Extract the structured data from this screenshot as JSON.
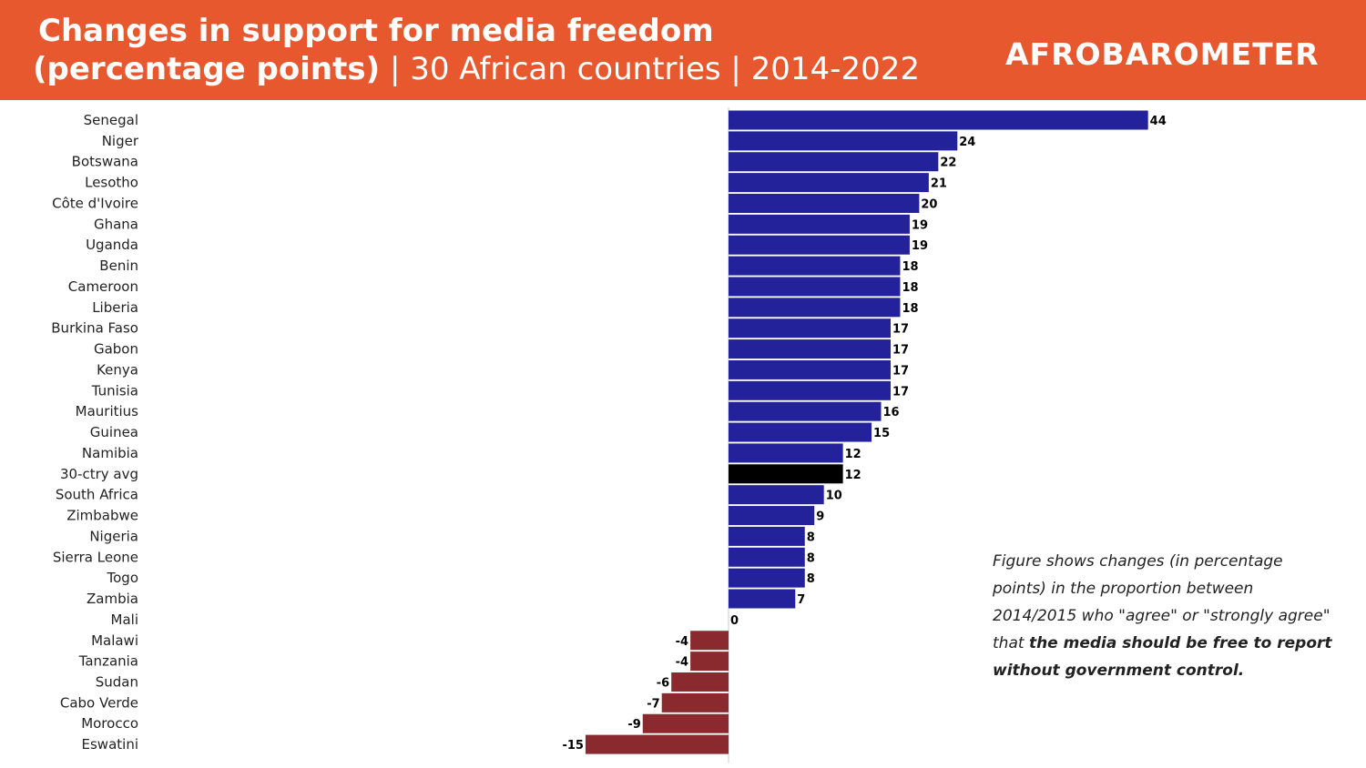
{
  "header": {
    "title_bold": "Changes in support for media freedom",
    "title_bold2": "(percentage points)",
    "title_rest": " | 30 African countries | 2014-2022",
    "logo": "AFROBAROMETER"
  },
  "note": {
    "text_plain": "Figure shows changes (in percentage points) in the proportion between 2014/2015 who \"agree\" or \"strongly agree\" that ",
    "text_bold": "the media should be free to report without government control."
  },
  "colors": {
    "header_bg": "#e8582e",
    "positive": "#24229a",
    "negative": "#8a2a2e",
    "average": "#000000"
  },
  "chart_data": {
    "type": "bar",
    "orientation": "horizontal",
    "categories": [
      "Senegal",
      "Niger",
      "Botswana",
      "Lesotho",
      "Côte d'Ivoire",
      "Ghana",
      "Uganda",
      "Benin",
      "Cameroon",
      "Liberia",
      "Burkina Faso",
      "Gabon",
      "Kenya",
      "Tunisia",
      "Mauritius",
      "Guinea",
      "Namibia",
      "30-ctry avg",
      "South Africa",
      "Zimbabwe",
      "Nigeria",
      "Sierra Leone",
      "Togo",
      "Zambia",
      "Mali",
      "Malawi",
      "Tanzania",
      "Sudan",
      "Cabo Verde",
      "Morocco",
      "Eswatini"
    ],
    "values": [
      44,
      24,
      22,
      21,
      20,
      19,
      19,
      18,
      18,
      18,
      17,
      17,
      17,
      17,
      16,
      15,
      12,
      12,
      10,
      9,
      8,
      8,
      8,
      7,
      0,
      -4,
      -4,
      -6,
      -7,
      -9,
      -15
    ],
    "highlight_category": "30-ctry avg",
    "xlim": [
      -15,
      44
    ],
    "grid": false,
    "legend": "none"
  }
}
